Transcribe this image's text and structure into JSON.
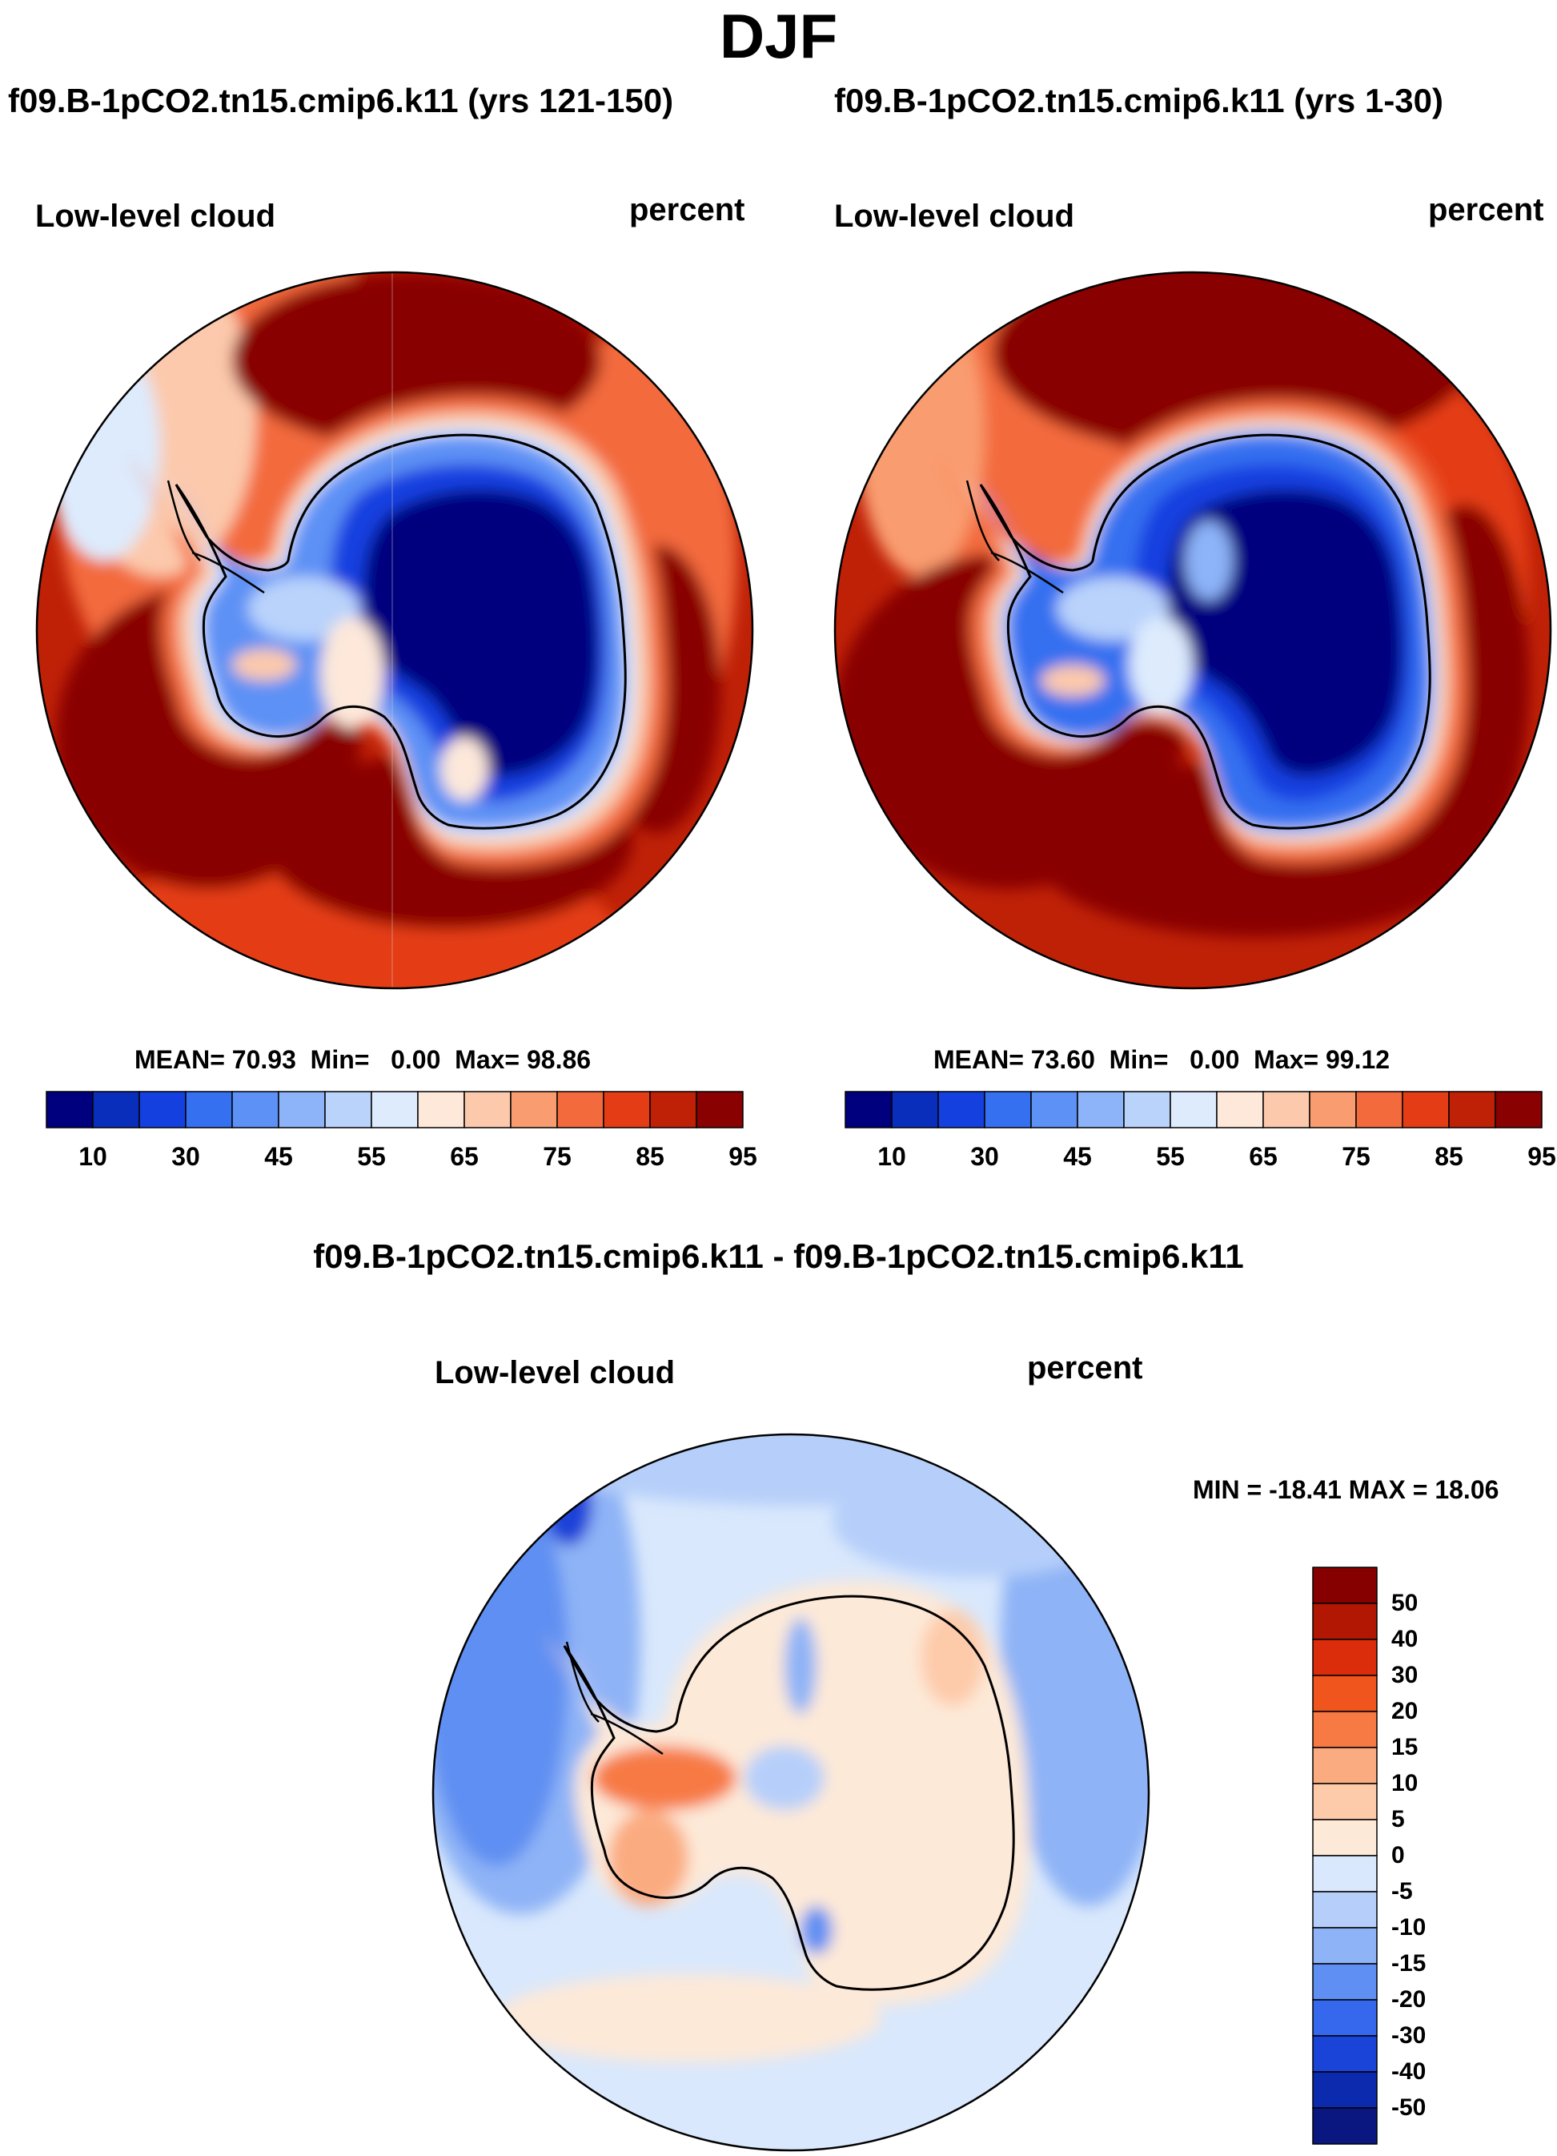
{
  "title": "DJF",
  "panels": [
    {
      "id": "panel-1",
      "title": "f09.B-1pCO2.tn15.cmip6.k11 (yrs 121-150)",
      "left_label": "Low-level cloud",
      "right_label": "percent",
      "stats": {
        "mean_label": "MEAN=",
        "mean": "70.93",
        "min_label": "Min=",
        "min": "0.00",
        "max_label": "Max=",
        "max": "98.86"
      },
      "colorbar_ticks": [
        "10",
        "30",
        "45",
        "55",
        "65",
        "75",
        "85",
        "95"
      ]
    },
    {
      "id": "panel-2",
      "title": "f09.B-1pCO2.tn15.cmip6.k11 (yrs 1-30)",
      "left_label": "Low-level cloud",
      "right_label": "percent",
      "stats": {
        "mean_label": "MEAN=",
        "mean": "73.60",
        "min_label": "Min=",
        "min": "0.00",
        "max_label": "Max=",
        "max": "99.12"
      },
      "colorbar_ticks": [
        "10",
        "30",
        "45",
        "55",
        "65",
        "75",
        "85",
        "95"
      ]
    },
    {
      "id": "panel-diff",
      "title": "f09.B-1pCO2.tn15.cmip6.k11 - f09.B-1pCO2.tn15.cmip6.k11",
      "left_label": "Low-level cloud",
      "right_label": "percent",
      "minmax": "MIN = -18.41 MAX =  18.06",
      "colorbar_ticks": [
        "50",
        "40",
        "30",
        "20",
        "15",
        "10",
        "5",
        "0",
        "-5",
        "-10",
        "-15",
        "-20",
        "-30",
        "-40",
        "-50"
      ]
    }
  ],
  "colors": {
    "abs_scale": [
      "#00007f",
      "#0a2ebc",
      "#1540e0",
      "#3470f0",
      "#5d91f5",
      "#8db3f8",
      "#b9d3fb",
      "#ddebfd",
      "#fde8da",
      "#fcc9ac",
      "#f99c6f",
      "#f36b3c",
      "#e43d16",
      "#bf2107",
      "#890101"
    ],
    "diff_scale": [
      "#870000",
      "#b21703",
      "#db2c0b",
      "#f0551e",
      "#f77a44",
      "#fbab80",
      "#fdcbaa",
      "#fde9d8",
      "#d9e8fc",
      "#b6cffa",
      "#8eb3f6",
      "#5f8ff2",
      "#3568ec",
      "#1a43d8",
      "#0c2aae",
      "#0b1780"
    ]
  }
}
